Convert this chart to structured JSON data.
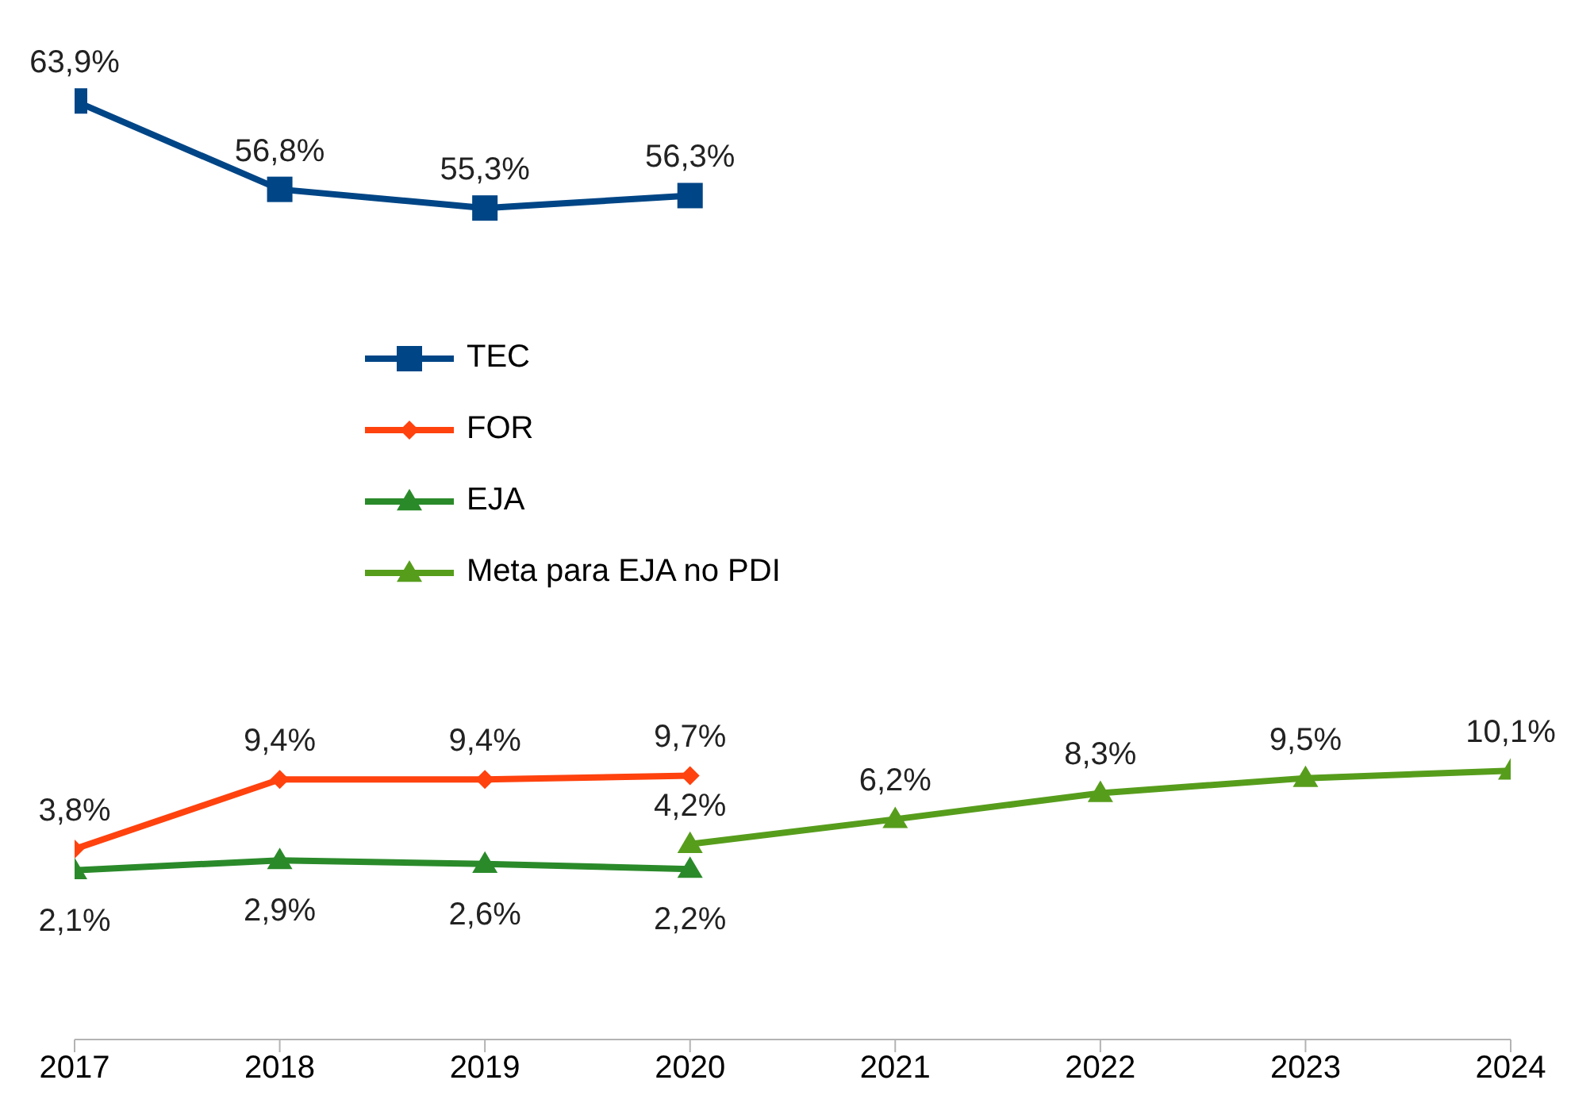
{
  "chart_data": {
    "type": "line",
    "categories": [
      "2017",
      "2018",
      "2019",
      "2020",
      "2021",
      "2022",
      "2023",
      "2024"
    ],
    "tick_labels": "x",
    "grid": false,
    "legend": "center",
    "line_style": "solid",
    "series": [
      {
        "name": "TEC",
        "color": "#004586",
        "marker": "square",
        "values": [
          63.9,
          56.8,
          55.3,
          56.3,
          null,
          null,
          null,
          null
        ],
        "value_labels": [
          "63,9%",
          "56,8%",
          "55,3%",
          "56,3%",
          null,
          null,
          null,
          null
        ]
      },
      {
        "name": "FOR",
        "color": "#ff420e",
        "marker": "diamond",
        "values": [
          3.8,
          9.4,
          9.4,
          9.7,
          null,
          null,
          null,
          null
        ],
        "value_labels": [
          "3,8%",
          "9,4%",
          "9,4%",
          "9,7%",
          null,
          null,
          null,
          null
        ]
      },
      {
        "name": "EJA",
        "color": "#2a8a2a",
        "marker": "triangle",
        "values": [
          2.1,
          2.9,
          2.6,
          2.2,
          null,
          null,
          null,
          null
        ],
        "value_labels": [
          "2,1%",
          "2,9%",
          "2,6%",
          "2,2%",
          null,
          null,
          null,
          null
        ]
      },
      {
        "name": "Meta para EJA no PDI",
        "color": "#579d1c",
        "marker": "triangle",
        "values": [
          null,
          null,
          null,
          4.2,
          6.2,
          8.3,
          9.5,
          10.1
        ],
        "value_labels": [
          null,
          null,
          null,
          "4,2%",
          "6,2%",
          "8,3%",
          "9,5%",
          "10,1%"
        ]
      }
    ]
  }
}
